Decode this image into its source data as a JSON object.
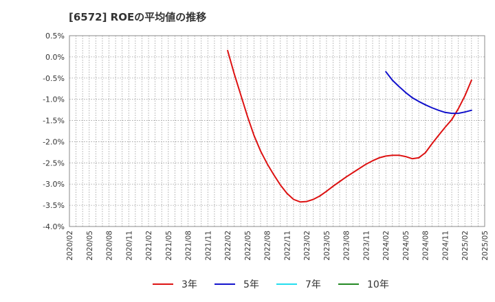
{
  "chart_data": {
    "type": "line",
    "title": "[6572]  ROEの平均値の推移",
    "xlabel": "",
    "ylabel": "",
    "ylim": [
      -4.0,
      0.5
    ],
    "yticks": [
      0.5,
      0.0,
      -0.5,
      -1.0,
      -1.5,
      -2.0,
      -2.5,
      -3.0,
      -3.5,
      -4.0
    ],
    "ytick_labels": [
      "0.5%",
      "0.0%",
      "-0.5%",
      "-1.0%",
      "-1.5%",
      "-2.0%",
      "-2.5%",
      "-3.0%",
      "-3.5%",
      "-4.0%"
    ],
    "xtick_labels": [
      "2020/02",
      "2020/05",
      "2020/08",
      "2020/11",
      "2021/02",
      "2021/05",
      "2021/08",
      "2021/11",
      "2022/02",
      "2022/05",
      "2022/08",
      "2022/11",
      "2023/02",
      "2023/05",
      "2023/08",
      "2023/11",
      "2024/02",
      "2024/05",
      "2024/08",
      "2024/11",
      "2025/02",
      "2025/05"
    ],
    "grid": true,
    "legend_position": "bottom",
    "series": [
      {
        "name": "3年",
        "color": "#dd1111",
        "points": [
          [
            24,
            0.15
          ],
          [
            25,
            -0.4
          ],
          [
            26,
            -0.9
          ],
          [
            27,
            -1.4
          ],
          [
            28,
            -1.85
          ],
          [
            29,
            -2.22
          ],
          [
            30,
            -2.52
          ],
          [
            31,
            -2.78
          ],
          [
            32,
            -3.02
          ],
          [
            33,
            -3.22
          ],
          [
            34,
            -3.36
          ],
          [
            35,
            -3.42
          ],
          [
            36,
            -3.41
          ],
          [
            37,
            -3.36
          ],
          [
            38,
            -3.28
          ],
          [
            39,
            -3.17
          ],
          [
            40,
            -3.05
          ],
          [
            41,
            -2.94
          ],
          [
            42,
            -2.83
          ],
          [
            43,
            -2.73
          ],
          [
            44,
            -2.63
          ],
          [
            45,
            -2.53
          ],
          [
            46,
            -2.45
          ],
          [
            47,
            -2.38
          ],
          [
            48,
            -2.34
          ],
          [
            49,
            -2.32
          ],
          [
            50,
            -2.32
          ],
          [
            51,
            -2.35
          ],
          [
            52,
            -2.4
          ],
          [
            53,
            -2.38
          ],
          [
            54,
            -2.26
          ],
          [
            55,
            -2.05
          ],
          [
            56,
            -1.85
          ],
          [
            57,
            -1.66
          ],
          [
            58,
            -1.48
          ],
          [
            59,
            -1.22
          ],
          [
            60,
            -0.92
          ],
          [
            61,
            -0.55
          ]
        ]
      },
      {
        "name": "5年",
        "color": "#1111cc",
        "points": [
          [
            48,
            -0.35
          ],
          [
            49,
            -0.55
          ],
          [
            50,
            -0.7
          ],
          [
            51,
            -0.84
          ],
          [
            52,
            -0.96
          ],
          [
            53,
            -1.05
          ],
          [
            54,
            -1.13
          ],
          [
            55,
            -1.2
          ],
          [
            56,
            -1.26
          ],
          [
            57,
            -1.31
          ],
          [
            58,
            -1.33
          ],
          [
            59,
            -1.33
          ],
          [
            60,
            -1.3
          ],
          [
            61,
            -1.26
          ]
        ]
      },
      {
        "name": "7年",
        "color": "#22ddee",
        "points": []
      },
      {
        "name": "10年",
        "color": "#228822",
        "points": []
      }
    ]
  }
}
